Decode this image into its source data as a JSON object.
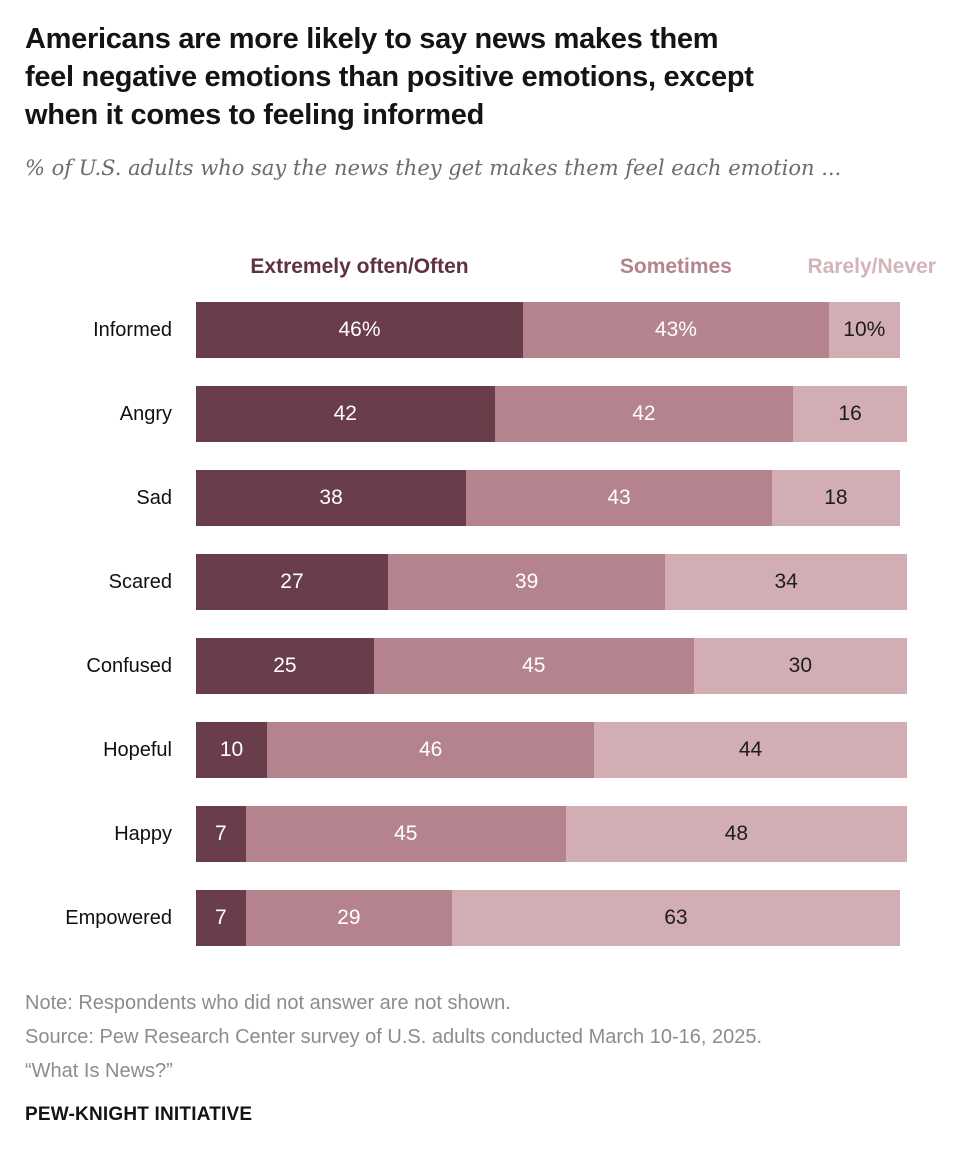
{
  "header": {
    "title_lines": [
      "Americans are more likely to say news makes them",
      "feel negative emotions than positive emotions, except",
      "when it comes to feeling informed"
    ],
    "subtitle": "% of U.S. adults who say the news they get makes them feel each emotion ..."
  },
  "legend": {
    "items": [
      {
        "label": "Extremely often/Often",
        "color": "#5e3243"
      },
      {
        "label": "Sometimes",
        "color": "#b5838d"
      },
      {
        "label": "Rarely/Never",
        "color": "#d4b3b9"
      }
    ]
  },
  "chart_data": {
    "type": "bar",
    "stacked": true,
    "orientation": "horizontal",
    "title": "Americans are more likely to say news makes them feel negative emotions than positive emotions, except when it comes to feeling informed",
    "subtitle": "% of U.S. adults who say the news they get makes them feel each emotion ...",
    "xlim": [
      0,
      100
    ],
    "categories": [
      "Informed",
      "Angry",
      "Sad",
      "Scared",
      "Confused",
      "Hopeful",
      "Happy",
      "Empowered"
    ],
    "series": [
      {
        "name": "Extremely often/Often",
        "color": "#6a3d4a",
        "values": [
          46,
          42,
          38,
          27,
          25,
          10,
          7,
          7
        ]
      },
      {
        "name": "Sometimes",
        "color": "#b5838d",
        "values": [
          43,
          42,
          43,
          39,
          45,
          46,
          45,
          29
        ]
      },
      {
        "name": "Rarely/Never",
        "color": "#d2aeb4",
        "values": [
          10,
          16,
          18,
          34,
          30,
          44,
          48,
          63
        ]
      }
    ],
    "value_labels": [
      [
        "46%",
        "43%",
        "10%"
      ],
      [
        "42",
        "42",
        "16"
      ],
      [
        "38",
        "43",
        "18"
      ],
      [
        "27",
        "39",
        "34"
      ],
      [
        "25",
        "45",
        "30"
      ],
      [
        "10",
        "46",
        "44"
      ],
      [
        "7",
        "45",
        "48"
      ],
      [
        "7",
        "29",
        "63"
      ]
    ],
    "value_text_colors": [
      "#ffffff",
      "#ffffff",
      "#1d1d1d"
    ],
    "legend_position": "top"
  },
  "footer": {
    "note": "Note: Respondents who did not answer are not shown.",
    "source": "Source: Pew Research Center survey of U.S. adults conducted March 10-16, 2025.",
    "source2": "“What Is News?”",
    "brand": "PEW-KNIGHT INITIATIVE"
  }
}
